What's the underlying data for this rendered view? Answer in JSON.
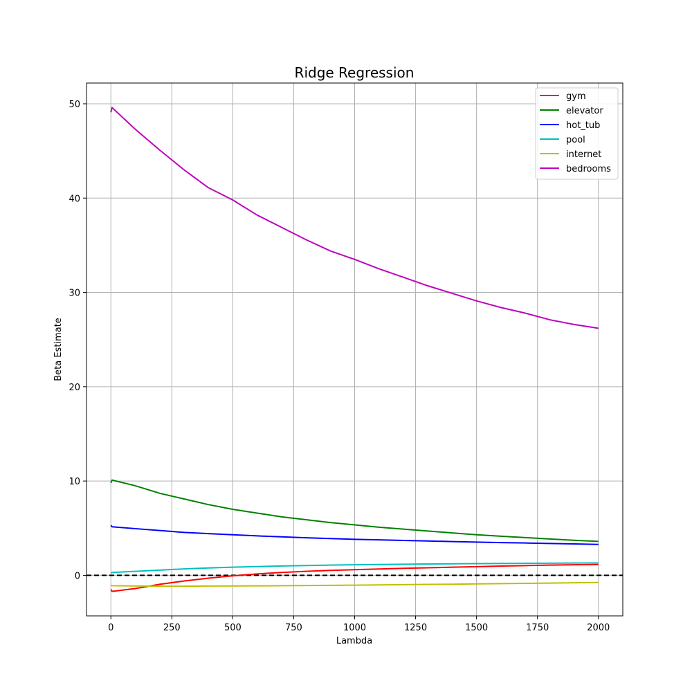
{
  "chart_data": {
    "type": "line",
    "title": "Ridge Regression",
    "xlabel": "Lambda",
    "ylabel": "Beta Estimate",
    "xlim": [
      -100,
      2100
    ],
    "ylim": [
      -4.3,
      52.2
    ],
    "xticks": [
      0,
      250,
      500,
      750,
      1000,
      1250,
      1500,
      1750,
      2000
    ],
    "yticks": [
      0,
      10,
      20,
      30,
      40,
      50
    ],
    "grid": true,
    "legend_position": "top-right",
    "reference_line": {
      "y": 0,
      "color": "#000000",
      "style": "dashed"
    },
    "x": [
      0,
      5,
      100,
      200,
      300,
      400,
      500,
      600,
      700,
      800,
      900,
      1000,
      1100,
      1200,
      1300,
      1400,
      1500,
      1600,
      1700,
      1800,
      1900,
      2000
    ],
    "series": [
      {
        "name": "gym",
        "color": "#ff0000",
        "values": [
          -1.5,
          -1.7,
          -1.4,
          -0.95,
          -0.6,
          -0.3,
          -0.05,
          0.15,
          0.3,
          0.42,
          0.52,
          0.6,
          0.67,
          0.74,
          0.8,
          0.86,
          0.92,
          0.98,
          1.03,
          1.08,
          1.12,
          1.15
        ]
      },
      {
        "name": "elevator",
        "color": "#008000",
        "values": [
          9.8,
          10.1,
          9.5,
          8.7,
          8.1,
          7.5,
          7.0,
          6.6,
          6.2,
          5.9,
          5.6,
          5.35,
          5.1,
          4.9,
          4.7,
          4.5,
          4.3,
          4.15,
          4.0,
          3.85,
          3.72,
          3.6
        ]
      },
      {
        "name": "hot_tub",
        "color": "#0000ff",
        "values": [
          5.3,
          5.15,
          4.95,
          4.75,
          4.55,
          4.42,
          4.3,
          4.18,
          4.08,
          3.98,
          3.9,
          3.82,
          3.76,
          3.7,
          3.64,
          3.58,
          3.52,
          3.47,
          3.43,
          3.38,
          3.33,
          3.28
        ]
      },
      {
        "name": "pool",
        "color": "#00bfbf",
        "values": [
          0.25,
          0.3,
          0.42,
          0.55,
          0.68,
          0.78,
          0.86,
          0.93,
          0.99,
          1.04,
          1.08,
          1.12,
          1.15,
          1.18,
          1.2,
          1.22,
          1.24,
          1.26,
          1.28,
          1.29,
          1.3,
          1.31
        ]
      },
      {
        "name": "internet",
        "color": "#bfbf00",
        "values": [
          -1.05,
          -1.1,
          -1.13,
          -1.15,
          -1.15,
          -1.14,
          -1.13,
          -1.12,
          -1.1,
          -1.08,
          -1.06,
          -1.04,
          -1.02,
          -0.99,
          -0.96,
          -0.94,
          -0.91,
          -0.88,
          -0.85,
          -0.82,
          -0.79,
          -0.76
        ]
      },
      {
        "name": "bedrooms",
        "color": "#bf00bf",
        "values": [
          49.1,
          49.6,
          47.3,
          45.1,
          43.0,
          41.1,
          39.8,
          38.2,
          36.9,
          35.6,
          34.4,
          33.5,
          32.5,
          31.6,
          30.7,
          29.9,
          29.1,
          28.4,
          27.8,
          27.1,
          26.6,
          26.2
        ]
      }
    ]
  }
}
